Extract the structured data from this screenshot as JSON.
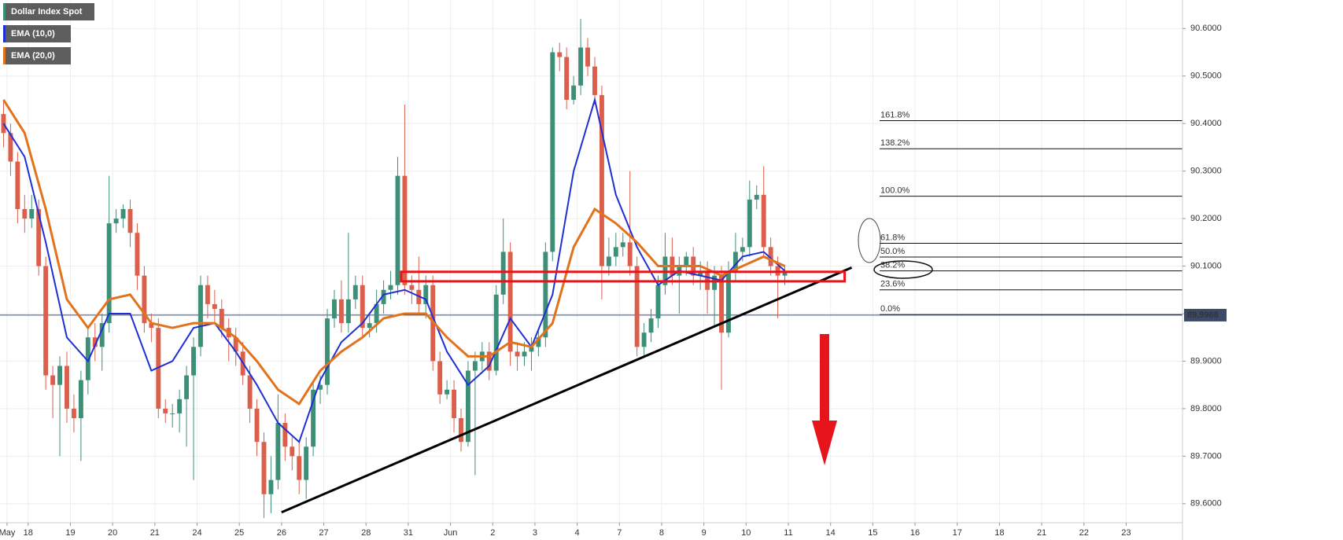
{
  "chart_data": {
    "type": "candlestick",
    "title": "Dollar Index Spot",
    "up_color": "#3d8f78",
    "down_color": "#db5f4b",
    "grid": true,
    "xlim": [
      0,
      168
    ],
    "ylim": [
      89.56,
      90.66
    ],
    "xticks": [
      {
        "value": 1,
        "label": "May"
      },
      {
        "value": 4,
        "label": "18"
      },
      {
        "value": 10,
        "label": "19"
      },
      {
        "value": 16,
        "label": "20"
      },
      {
        "value": 22,
        "label": "21"
      },
      {
        "value": 28,
        "label": "24"
      },
      {
        "value": 34,
        "label": "25"
      },
      {
        "value": 40,
        "label": "26"
      },
      {
        "value": 46,
        "label": "27"
      },
      {
        "value": 52,
        "label": "28"
      },
      {
        "value": 58,
        "label": "31"
      },
      {
        "value": 64,
        "label": "Jun"
      },
      {
        "value": 70,
        "label": "2"
      },
      {
        "value": 76,
        "label": "3"
      },
      {
        "value": 82,
        "label": "4"
      },
      {
        "value": 88,
        "label": "7"
      },
      {
        "value": 94,
        "label": "8"
      },
      {
        "value": 100,
        "label": "9"
      },
      {
        "value": 106,
        "label": "10"
      },
      {
        "value": 112,
        "label": "11"
      },
      {
        "value": 118,
        "label": "14"
      },
      {
        "value": 124,
        "label": "15"
      },
      {
        "value": 130,
        "label": "16"
      },
      {
        "value": 136,
        "label": "17"
      },
      {
        "value": 142,
        "label": "18"
      },
      {
        "value": 148,
        "label": "21"
      },
      {
        "value": 154,
        "label": "22"
      },
      {
        "value": 160,
        "label": "23"
      }
    ],
    "yticks": [
      {
        "value": 89.6,
        "label": "89.6000"
      },
      {
        "value": 89.7,
        "label": "89.7000"
      },
      {
        "value": 89.8,
        "label": "89.8000"
      },
      {
        "value": 89.9,
        "label": "89.9000"
      },
      {
        "value": 90.0,
        "label": "90.0000"
      },
      {
        "value": 90.1,
        "label": "90.1000"
      },
      {
        "value": 90.2,
        "label": "90.2000"
      },
      {
        "value": 90.3,
        "label": "90.3000"
      },
      {
        "value": 90.4,
        "label": "90.4000"
      },
      {
        "value": 90.5,
        "label": "90.5000"
      },
      {
        "value": 90.6,
        "label": "90.6000"
      }
    ],
    "open": [
      90.42,
      90.38,
      90.32,
      90.22,
      90.2,
      90.22,
      90.1,
      89.87,
      89.85,
      89.89,
      89.8,
      89.78,
      89.86,
      89.95,
      89.93,
      89.98,
      90.19,
      90.2,
      90.22,
      90.17,
      90.08,
      89.98,
      89.97,
      89.8,
      89.79,
      89.79,
      89.82,
      89.87,
      89.93,
      90.06,
      90.02,
      90.01,
      89.97,
      89.95,
      89.92,
      89.87,
      89.8,
      89.73,
      89.62,
      89.65,
      89.77,
      89.72,
      89.7,
      89.65,
      89.72,
      89.84,
      89.85,
      89.99,
      90.03,
      89.98,
      90.03,
      90.06,
      89.97,
      89.98,
      90.02,
      90.05,
      90.06,
      90.29,
      90.06,
      90.05,
      90.02,
      90.06,
      89.9,
      89.83,
      89.84,
      89.78,
      89.73,
      89.88,
      89.9,
      89.92,
      89.88,
      90.04,
      90.13,
      89.92,
      89.91,
      89.92,
      89.93,
      89.95,
      90.13,
      90.55,
      90.54,
      90.45,
      90.48,
      90.56,
      90.52,
      90.46,
      90.1,
      90.12,
      90.14,
      90.15,
      90.1,
      89.93,
      89.96,
      89.99,
      90.06,
      90.12,
      90.08,
      90.1,
      90.12,
      90.08,
      90.09,
      90.05,
      90.08,
      89.96,
      90.09,
      90.13,
      90.14,
      90.24,
      90.25,
      90.14,
      90.1,
      90.08
    ],
    "high": [
      90.45,
      90.4,
      90.34,
      90.25,
      90.25,
      90.24,
      90.12,
      89.89,
      89.91,
      89.92,
      89.83,
      89.88,
      89.97,
      89.98,
      90.0,
      90.29,
      90.22,
      90.23,
      90.24,
      90.19,
      90.1,
      90.0,
      89.99,
      89.82,
      89.81,
      89.84,
      89.89,
      89.95,
      90.08,
      90.08,
      90.05,
      90.03,
      89.99,
      89.97,
      89.94,
      89.89,
      89.82,
      89.75,
      89.7,
      89.83,
      89.79,
      89.74,
      89.73,
      89.74,
      89.86,
      89.87,
      90.01,
      90.05,
      90.07,
      90.17,
      90.08,
      90.08,
      90.0,
      90.05,
      90.07,
      90.09,
      90.33,
      90.44,
      90.08,
      90.12,
      90.08,
      90.08,
      89.92,
      89.86,
      89.86,
      89.8,
      89.9,
      89.92,
      89.94,
      89.94,
      90.06,
      90.2,
      90.15,
      89.94,
      89.94,
      89.95,
      89.97,
      90.15,
      90.56,
      90.57,
      90.56,
      90.5,
      90.62,
      90.58,
      90.54,
      90.48,
      90.16,
      90.17,
      90.17,
      90.3,
      90.12,
      89.98,
      90.01,
      90.08,
      90.17,
      90.16,
      90.12,
      90.13,
      90.14,
      90.11,
      90.11,
      90.1,
      90.1,
      90.11,
      90.17,
      90.16,
      90.28,
      90.27,
      90.31,
      90.16,
      90.12,
      90.1
    ],
    "low": [
      90.35,
      90.29,
      90.19,
      90.17,
      90.18,
      90.08,
      89.84,
      89.78,
      89.7,
      89.77,
      89.75,
      89.69,
      89.83,
      89.9,
      89.88,
      89.96,
      90.17,
      90.18,
      90.14,
      90.05,
      89.96,
      89.94,
      89.78,
      89.77,
      89.76,
      89.75,
      89.72,
      89.65,
      89.91,
      89.99,
      89.98,
      89.95,
      89.9,
      89.89,
      89.85,
      89.77,
      89.7,
      89.57,
      89.58,
      89.63,
      89.69,
      89.67,
      89.62,
      89.61,
      89.7,
      89.81,
      89.83,
      89.97,
      89.96,
      89.96,
      90.01,
      89.95,
      89.95,
      89.96,
      90.0,
      90.03,
      90.04,
      90.04,
      90.02,
      90.0,
      89.99,
      89.88,
      89.81,
      89.82,
      89.75,
      89.71,
      89.72,
      89.66,
      89.88,
      89.86,
      89.87,
      90.02,
      89.89,
      89.88,
      89.89,
      89.88,
      89.91,
      89.93,
      90.11,
      90.51,
      90.43,
      90.44,
      90.46,
      90.5,
      90.44,
      90.03,
      90.08,
      90.1,
      90.12,
      90.08,
      89.91,
      89.91,
      89.94,
      89.97,
      90.04,
      90.06,
      90.0,
      90.08,
      90.06,
      90.05,
      90.0,
      89.97,
      89.84,
      89.95,
      90.07,
      90.11,
      90.12,
      90.22,
      90.12,
      90.08,
      89.99,
      90.06
    ],
    "close": [
      90.38,
      90.32,
      90.22,
      90.2,
      90.22,
      90.1,
      89.87,
      89.85,
      89.89,
      89.8,
      89.78,
      89.86,
      89.95,
      89.93,
      89.98,
      90.19,
      90.2,
      90.22,
      90.17,
      90.08,
      89.98,
      89.97,
      89.8,
      89.79,
      89.79,
      89.82,
      89.87,
      89.93,
      90.06,
      90.02,
      90.01,
      89.97,
      89.95,
      89.92,
      89.87,
      89.8,
      89.73,
      89.62,
      89.65,
      89.77,
      89.72,
      89.7,
      89.65,
      89.72,
      89.84,
      89.85,
      89.99,
      90.03,
      89.98,
      90.03,
      90.06,
      89.97,
      89.98,
      90.02,
      90.05,
      90.06,
      90.29,
      90.06,
      90.05,
      90.02,
      90.06,
      89.9,
      89.83,
      89.84,
      89.78,
      89.73,
      89.88,
      89.9,
      89.92,
      89.88,
      90.04,
      90.13,
      89.92,
      89.91,
      89.92,
      89.93,
      89.95,
      90.13,
      90.55,
      90.54,
      90.45,
      90.48,
      90.56,
      90.52,
      90.46,
      90.1,
      90.12,
      90.14,
      90.15,
      90.1,
      89.93,
      89.96,
      89.99,
      90.06,
      90.12,
      90.08,
      90.1,
      90.12,
      90.08,
      90.09,
      90.05,
      90.08,
      89.96,
      90.09,
      90.13,
      90.14,
      90.24,
      90.25,
      90.14,
      90.1,
      90.08,
      90.09
    ],
    "series": [
      {
        "name": "EMA (10,0)",
        "color": "#1f2fd6",
        "x": [
          0,
          3,
          6,
          9,
          12,
          15,
          18,
          21,
          24,
          27,
          30,
          33,
          36,
          39,
          42,
          45,
          48,
          51,
          54,
          57,
          60,
          63,
          66,
          69,
          72,
          75,
          78,
          81,
          84,
          87,
          90,
          93,
          96,
          99,
          102,
          105,
          108,
          111
        ],
        "values": [
          90.4,
          90.33,
          90.15,
          89.95,
          89.9,
          90.0,
          90.0,
          89.88,
          89.9,
          89.97,
          89.98,
          89.92,
          89.85,
          89.77,
          89.73,
          89.86,
          89.94,
          89.98,
          90.04,
          90.05,
          90.03,
          89.92,
          89.85,
          89.89,
          89.99,
          89.93,
          90.04,
          90.3,
          90.45,
          90.25,
          90.14,
          90.06,
          90.09,
          90.08,
          90.07,
          90.12,
          90.13,
          90.09
        ]
      },
      {
        "name": "EMA (20,0)",
        "color": "#e2731c",
        "x": [
          0,
          3,
          6,
          9,
          12,
          15,
          18,
          21,
          24,
          27,
          30,
          33,
          36,
          39,
          42,
          45,
          48,
          51,
          54,
          57,
          60,
          63,
          66,
          69,
          72,
          75,
          78,
          81,
          84,
          87,
          90,
          93,
          96,
          99,
          102,
          105,
          108,
          111
        ],
        "values": [
          90.45,
          90.38,
          90.22,
          90.03,
          89.97,
          90.03,
          90.04,
          89.98,
          89.97,
          89.98,
          89.98,
          89.95,
          89.9,
          89.84,
          89.81,
          89.88,
          89.92,
          89.95,
          89.99,
          90.0,
          90.0,
          89.95,
          89.91,
          89.91,
          89.94,
          89.93,
          89.98,
          90.14,
          90.22,
          90.19,
          90.15,
          90.1,
          90.1,
          90.1,
          90.08,
          90.1,
          90.12,
          90.1
        ]
      }
    ],
    "fib_levels": [
      {
        "label": "161.8%",
        "value": 90.406
      },
      {
        "label": "138.2%",
        "value": 90.347
      },
      {
        "label": "100.0%",
        "value": 90.247
      },
      {
        "label": "61.8%",
        "value": 90.148
      },
      {
        "label": "50.0%",
        "value": 90.119
      },
      {
        "label": "38.2%",
        "value": 90.09
      },
      {
        "label": "23.6%",
        "value": 90.05
      },
      {
        "label": "0.0%",
        "value": 89.998
      }
    ],
    "trendline": {
      "x": [
        40,
        121
      ],
      "values": [
        89.582,
        90.097
      ]
    },
    "zone": {
      "x": [
        57,
        120
      ],
      "values": [
        90.088,
        90.068
      ]
    },
    "last_price": {
      "value": 89.9968,
      "label": "89.9968"
    }
  }
}
